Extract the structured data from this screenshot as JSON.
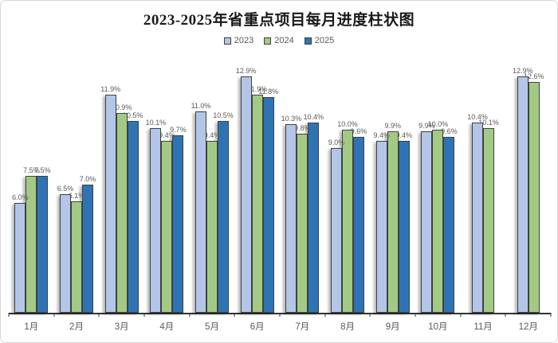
{
  "chart_data": {
    "type": "bar",
    "title": "2023-2025年省重点项目每月进度柱状图",
    "unit": "%",
    "categories": [
      "1月",
      "2月",
      "3月",
      "4月",
      "5月",
      "6月",
      "7月",
      "8月",
      "9月",
      "10月",
      "11月",
      "12月"
    ],
    "series": [
      {
        "name": "2023",
        "color": "#b3c6e7",
        "values": [
          6.0,
          6.5,
          11.9,
          10.1,
          11.0,
          12.9,
          10.3,
          9.0,
          9.4,
          9.9,
          10.4,
          12.9
        ]
      },
      {
        "name": "2024",
        "color": "#a2ca84",
        "values": [
          7.5,
          6.1,
          10.9,
          9.4,
          9.4,
          11.9,
          9.8,
          10.0,
          9.9,
          10.0,
          10.1,
          12.6
        ]
      },
      {
        "name": "2025",
        "color": "#2e74b5",
        "values": [
          7.5,
          7.0,
          10.5,
          9.7,
          10.5,
          11.8,
          10.4,
          9.6,
          9.4,
          9.6,
          null,
          null
        ]
      }
    ],
    "ylim": [
      0,
      13.5
    ],
    "grid": false,
    "y_axis_visible": false,
    "legend_position": "top",
    "data_labels": true,
    "colors": {
      "axis": "#333333",
      "data_label": "#595959",
      "bar_border": "#404040",
      "title": "#1a1a1a",
      "card_border": "#d9d9d9"
    }
  }
}
